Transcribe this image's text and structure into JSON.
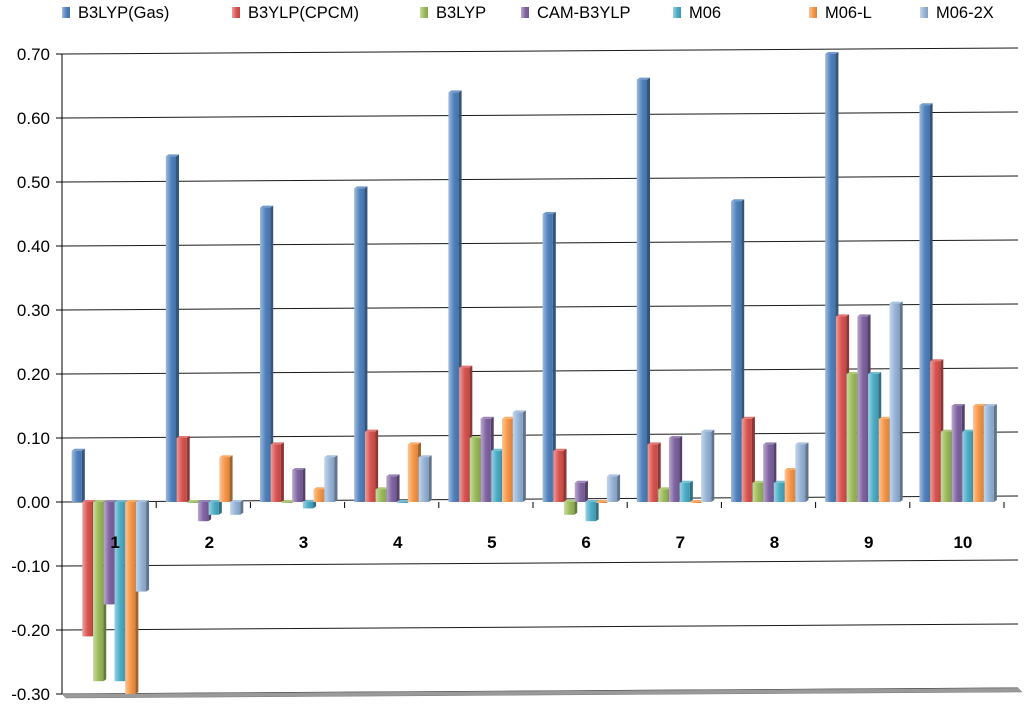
{
  "chart_data": {
    "type": "bar",
    "categories": [
      "1",
      "2",
      "3",
      "4",
      "5",
      "6",
      "7",
      "8",
      "9",
      "10"
    ],
    "series": [
      {
        "name": "B3LYP(Gas)",
        "color": "#4f81bd",
        "values": [
          0.08,
          0.54,
          0.46,
          0.49,
          0.64,
          0.45,
          0.66,
          0.47,
          0.7,
          0.62
        ]
      },
      {
        "name": "B3YLP(CPCM)",
        "color": "#d9534f",
        "values": [
          -0.21,
          0.1,
          0.09,
          0.11,
          0.21,
          0.08,
          0.09,
          0.13,
          0.29,
          0.22
        ]
      },
      {
        "name": "B3LYP",
        "color": "#9bbb59",
        "values": [
          -0.28,
          0.0,
          0.0,
          0.02,
          0.1,
          -0.02,
          0.02,
          0.03,
          0.2,
          0.11
        ]
      },
      {
        "name": "CAM-B3YLP",
        "color": "#8064a2",
        "values": [
          -0.16,
          -0.03,
          0.05,
          0.04,
          0.13,
          0.03,
          0.1,
          0.09,
          0.29,
          0.15
        ]
      },
      {
        "name": "M06",
        "color": "#4bacc6",
        "values": [
          -0.28,
          -0.02,
          -0.01,
          0.0,
          0.08,
          -0.03,
          0.03,
          0.03,
          0.2,
          0.11
        ]
      },
      {
        "name": "M06-L",
        "color": "#f79646",
        "values": [
          -0.3,
          0.07,
          0.02,
          0.09,
          0.13,
          0.0,
          0.0,
          0.05,
          0.13,
          0.15
        ]
      },
      {
        "name": "M06-2X",
        "color": "#95b3d7",
        "values": [
          -0.14,
          -0.02,
          0.07,
          0.07,
          0.14,
          0.04,
          0.11,
          0.09,
          0.31,
          0.15
        ]
      }
    ],
    "yticks": [
      "0.70",
      "0.60",
      "0.50",
      "0.40",
      "0.30",
      "0.20",
      "0.10",
      "0.00",
      "-0.10",
      "-0.20",
      "-0.30"
    ],
    "ylim": [
      -0.3,
      0.7
    ],
    "grid": true,
    "legend_position": "top",
    "title": "",
    "xlabel": "",
    "ylabel": ""
  }
}
